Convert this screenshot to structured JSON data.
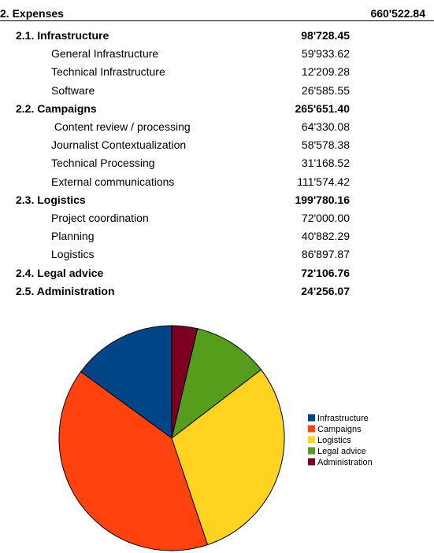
{
  "header": {
    "title": "2. Expenses",
    "total": "660'522.84"
  },
  "sections": [
    {
      "label": "2.1. Infrastructure",
      "value": "98'728.45",
      "items": [
        {
          "label": "General Infrastructure",
          "value": "59'933.62"
        },
        {
          "label": "Technical Infrastructure",
          "value": "12'209.28"
        },
        {
          "label": "Software",
          "value": "26'585.55"
        }
      ]
    },
    {
      "label": "2.2. Campaigns",
      "value": "265'651.40",
      "items": [
        {
          "label": " Content review / processing",
          "value": "64'330.08"
        },
        {
          "label": "Journalist Contextualization",
          "value": "58'578.38"
        },
        {
          "label": "Technical Processing",
          "value": "31'168.52"
        },
        {
          "label": "External communications",
          "value": "111'574.42"
        }
      ]
    },
    {
      "label": "2.3. Logistics",
      "value": "199'780.16",
      "items": [
        {
          "label": "Project coordination",
          "value": "72'000.00"
        },
        {
          "label": "Planning",
          "value": "40'882.29"
        },
        {
          "label": "Logistics",
          "value": "86'897.87"
        }
      ]
    },
    {
      "label": "2.4. Legal advice",
      "value": "72'106.76",
      "items": []
    },
    {
      "label": "2.5. Administration",
      "value": "24'256.07",
      "items": []
    }
  ],
  "chart_data": {
    "type": "pie",
    "categories": [
      "Infrastructure",
      "Campaigns",
      "Logistics",
      "Legal advice",
      "Administration"
    ],
    "values": [
      98728.45,
      265651.4,
      199780.16,
      72106.76,
      24256.07
    ],
    "colors": [
      "#004586",
      "#ff420e",
      "#ffd320",
      "#579d1c",
      "#7e0021"
    ],
    "legend": "right"
  }
}
